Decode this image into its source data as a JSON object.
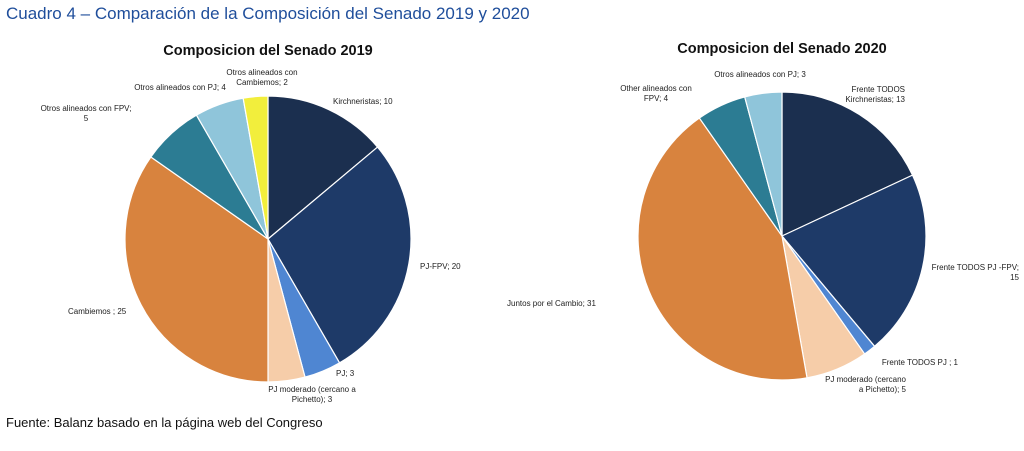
{
  "heading": "Cuadro 4 – Comparación de la Composición del Senado 2019 y 2020",
  "source": "Fuente: Balanz basado en la página web del Congreso",
  "chart_data": [
    {
      "type": "pie",
      "title": "Composicion del Senado 2019",
      "slices": [
        {
          "label": [
            "Kirchneristas; 10"
          ],
          "value": 10,
          "color": "#1b2f4f"
        },
        {
          "label": [
            "PJ-FPV; 20"
          ],
          "value": 20,
          "color": "#1e3a68"
        },
        {
          "label": [
            "PJ; 3"
          ],
          "value": 3,
          "color": "#4f86d2"
        },
        {
          "label": [
            "PJ moderado (cercano a",
            "Pichetto); 3"
          ],
          "value": 3,
          "color": "#f6cda9"
        },
        {
          "label": [
            "Cambiemos ; 25"
          ],
          "value": 25,
          "color": "#d8833e"
        },
        {
          "label": [
            "Otros alineados con FPV;",
            "5"
          ],
          "value": 5,
          "color": "#2c7c93"
        },
        {
          "label": [
            "Otros alineados con PJ; 4"
          ],
          "value": 4,
          "color": "#8fc5da"
        },
        {
          "label": [
            "Otros alineados con",
            "Cambiemos; 2"
          ],
          "value": 2,
          "color": "#f2ee3c"
        }
      ]
    },
    {
      "type": "pie",
      "title": "Composicion del Senado 2020",
      "slices": [
        {
          "label": [
            "Frente TODOS",
            "Kirchneristas; 13"
          ],
          "value": 13,
          "color": "#1b2f4f"
        },
        {
          "label": [
            "Frente TODOS PJ -FPV;",
            "15"
          ],
          "value": 15,
          "color": "#1e3a68"
        },
        {
          "label": [
            "Frente TODOS PJ ; 1"
          ],
          "value": 1,
          "color": "#4f86d2"
        },
        {
          "label": [
            "PJ moderado (cercano",
            "a Pichetto); 5"
          ],
          "value": 5,
          "color": "#f6cda9"
        },
        {
          "label": [
            "Juntos por el Cambio; 31"
          ],
          "value": 31,
          "color": "#d8833e"
        },
        {
          "label": [
            "Other alineados con",
            "FPV; 4"
          ],
          "value": 4,
          "color": "#2c7c93"
        },
        {
          "label": [
            "Otros alineados con PJ; 3"
          ],
          "value": 3,
          "color": "#8fc5da"
        }
      ]
    }
  ]
}
